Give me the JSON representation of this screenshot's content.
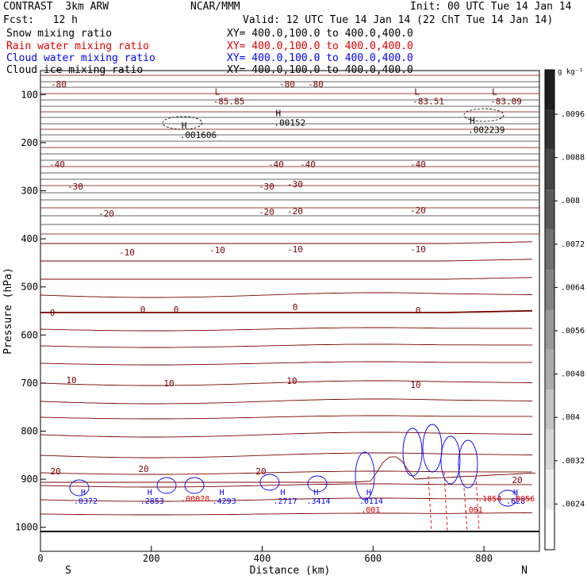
{
  "header": {
    "model": "CONTRAST  3km ARW",
    "center": "NCAR/MMM",
    "init": "Init: 00 UTC Tue 14 Jan 14",
    "fcst": "Fcst:   12 h",
    "valid": "Valid: 12 UTC Tue 14 Jan 14 (22 ChT Tue 14 Jan 14)"
  },
  "legend": [
    {
      "name": "Snow mixing ratio",
      "xy": "XY= 400.0,100.0 to 400.0,400.0",
      "color": "#000000"
    },
    {
      "name": "Rain water mixing ratio",
      "xy": "XY= 400.0,100.0 to 400.0,400.0",
      "color": "#e00000"
    },
    {
      "name": "Cloud water mixing ratio",
      "xy": "XY= 400.0,100.0 to 400.0,400.0",
      "color": "#0000ff"
    },
    {
      "name": "Cloud ice mixing ratio",
      "xy": "XY= 400.0,100.0 to 400.0,400.0",
      "color": "#000000"
    }
  ],
  "colorbar": {
    "unit": "g kg⁻¹",
    "labels": [
      ".0096",
      ".0088",
      ".008",
      ".0072",
      ".0064",
      ".0056",
      ".0048",
      ".004",
      ".0032",
      ".0024"
    ]
  },
  "chart_data": {
    "type": "contour",
    "xlabel": "Distance (km)",
    "ylabel": "Pressure (hPa)",
    "xlim": [
      0,
      900
    ],
    "ylim": [
      1050,
      50
    ],
    "x_ticks": [
      0,
      200,
      400,
      600,
      800
    ],
    "y_ticks": [
      100,
      200,
      300,
      400,
      500,
      600,
      700,
      800,
      900,
      1000
    ],
    "x_end_labels": {
      "left": "S",
      "right": "N"
    },
    "temperature_contours": [
      {
        "value": -80,
        "labels": [
          "-80",
          "-80",
          "-80"
        ]
      },
      {
        "value": -40,
        "labels": [
          "-40",
          "-40",
          "-40",
          "-40"
        ]
      },
      {
        "value": -30,
        "labels": [
          "-30",
          "-30",
          "-30"
        ]
      },
      {
        "value": -20,
        "labels": [
          "-20",
          "-20",
          "-20",
          "-20"
        ]
      },
      {
        "value": -10,
        "labels": [
          "-10",
          "-10",
          "-10",
          "-10"
        ]
      },
      {
        "value": 0,
        "labels": [
          "0",
          "0",
          "0",
          "0",
          "0"
        ]
      },
      {
        "value": 10,
        "labels": [
          "10",
          "10",
          "10",
          "10"
        ]
      },
      {
        "value": 20,
        "labels": [
          "20",
          "20",
          "20",
          "20"
        ]
      }
    ],
    "highs_lows": [
      {
        "type": "L",
        "value": "-85.85",
        "x": 320,
        "p": 110
      },
      {
        "type": "L",
        "value": "-83.51",
        "x": 680,
        "p": 110
      },
      {
        "type": "L",
        "value": "-83.09",
        "x": 820,
        "p": 110
      },
      {
        "type": "H",
        "value": ".00152",
        "x": 430,
        "p": 155
      },
      {
        "type": "H",
        "value": ".001606",
        "x": 260,
        "p": 180
      },
      {
        "type": "H",
        "value": ".002239",
        "x": 780,
        "p": 170
      }
    ],
    "cloud_water_highs": [
      {
        "value": ".0372",
        "x": 80
      },
      {
        "value": ".2853",
        "x": 200
      },
      {
        "value": ".4293",
        "x": 330
      },
      {
        "value": ".2717",
        "x": 440
      },
      {
        "value": ".3414",
        "x": 500
      },
      {
        "value": ".0114",
        "x": 595
      },
      {
        "value": ".628",
        "x": 860
      }
    ],
    "rain_highs": [
      {
        "value": ".00028",
        "x": 265
      },
      {
        "value": ".001",
        "x": 590
      },
      {
        "value": ".1854",
        "x": 800
      },
      {
        "value": ".001",
        "x": 775
      },
      {
        "value": ".0056",
        "x": 860
      }
    ]
  }
}
